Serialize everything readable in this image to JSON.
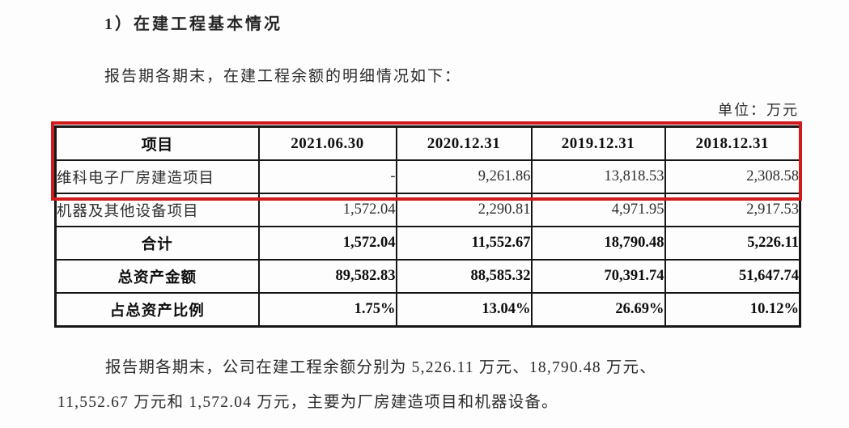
{
  "page": {
    "heading": "1）在建工程基本情况",
    "intro": "报告期各期末，在建工程余额的明细情况如下：",
    "unit_label": "单位：万元"
  },
  "table": {
    "highlight_color": "#cf1b1b",
    "columns": [
      "项目",
      "2021.06.30",
      "2020.12.31",
      "2019.12.31",
      "2018.12.31"
    ],
    "rows": [
      {
        "label": "维科电子厂房建造项目",
        "values": [
          "-",
          "9,261.86",
          "13,818.53",
          "2,308.58"
        ],
        "bold": false,
        "label_align": "left",
        "highlighted": true
      },
      {
        "label": "机器及其他设备项目",
        "values": [
          "1,572.04",
          "2,290.81",
          "4,971.95",
          "2,917.53"
        ],
        "bold": false,
        "label_align": "left",
        "highlighted": false
      },
      {
        "label": "合计",
        "values": [
          "1,572.04",
          "11,552.67",
          "18,790.48",
          "5,226.11"
        ],
        "bold": true,
        "label_align": "center",
        "highlighted": false
      },
      {
        "label": "总资产金额",
        "values": [
          "89,582.83",
          "88,585.32",
          "70,391.74",
          "51,647.74"
        ],
        "bold": true,
        "label_align": "center",
        "highlighted": false
      },
      {
        "label": "占总资产比例",
        "values": [
          "1.75%",
          "13.04%",
          "26.69%",
          "10.12%"
        ],
        "bold": true,
        "label_align": "center",
        "highlighted": false
      }
    ]
  },
  "footer": {
    "line1": "报告期各期末，公司在建工程余额分别为 5,226.11 万元、18,790.48 万元、",
    "line2": "11,552.67 万元和 1,572.04 万元，主要为厂房建造项目和机器设备。"
  }
}
